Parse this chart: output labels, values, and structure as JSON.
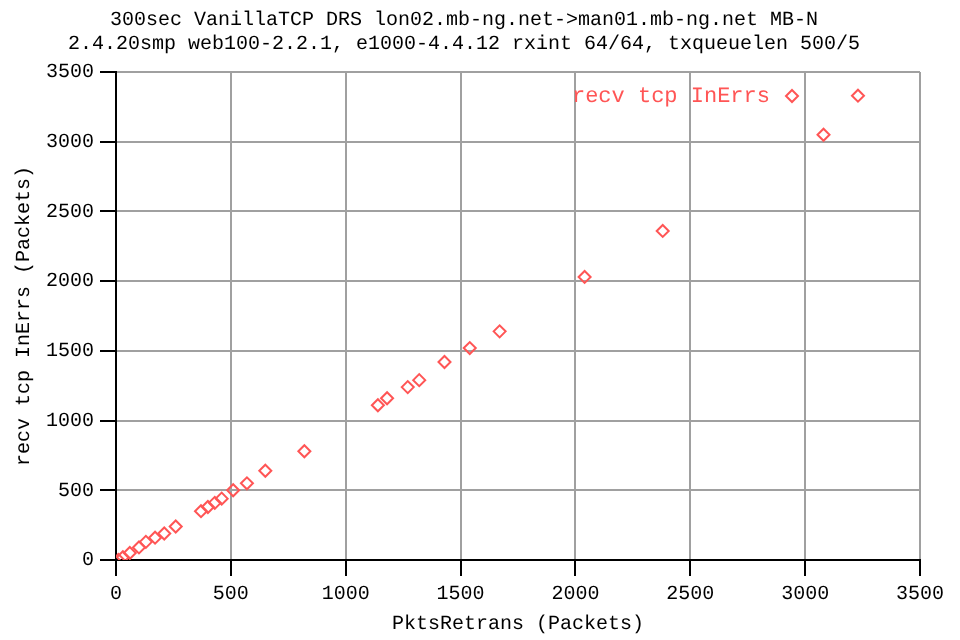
{
  "chart_data": {
    "type": "scatter",
    "title": "300sec VanillaTCP DRS lon02.mb-ng.net->man01.mb-ng.net MB-N",
    "subtitle": "2.4.20smp web100-2.2.1, e1000-4.4.12 rxint 64/64, txqueuelen 500/5",
    "xlabel": "PktsRetrans (Packets)",
    "ylabel": "recv tcp InErrs (Packets)",
    "series": [
      {
        "name": "recv tcp InErrs",
        "color": "#ff5555",
        "x": [
          10,
          30,
          60,
          100,
          130,
          170,
          210,
          260,
          370,
          400,
          430,
          460,
          510,
          570,
          650,
          820,
          1140,
          1180,
          1270,
          1320,
          1430,
          1540,
          1670,
          2040,
          2380,
          3080,
          3230
        ],
        "values": [
          0,
          20,
          50,
          90,
          130,
          160,
          190,
          240,
          350,
          380,
          410,
          440,
          500,
          550,
          640,
          780,
          1110,
          1160,
          1240,
          1290,
          1420,
          1520,
          1640,
          2030,
          2360,
          3050,
          3330
        ]
      }
    ],
    "xlim": [
      0,
      3500
    ],
    "xticks": [
      0,
      500,
      1000,
      1500,
      2000,
      2500,
      3000,
      3500
    ],
    "ylim": [
      0,
      3500
    ],
    "yticks": [
      0,
      500,
      1000,
      1500,
      2000,
      2500,
      3000,
      3500
    ],
    "grid": true,
    "legend": "top right",
    "marker": "diamond"
  }
}
